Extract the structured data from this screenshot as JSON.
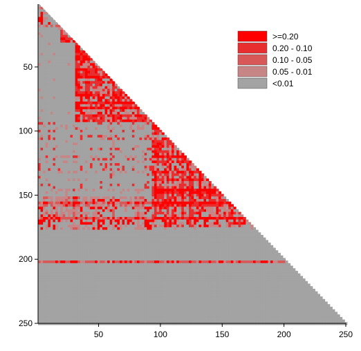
{
  "chart_data": {
    "type": "heatmap",
    "title": "",
    "xlabel": "",
    "ylabel": "",
    "matrix_size": 250,
    "xlim": [
      1,
      250
    ],
    "ylim": [
      1,
      250
    ],
    "y_inverted": true,
    "lower_triangle_only": true,
    "x_ticks": [
      50,
      100,
      150,
      200,
      250
    ],
    "y_ticks": [
      50,
      100,
      150,
      200,
      250
    ],
    "x_tick_labels": [
      "50",
      "100",
      "150",
      "200",
      "250"
    ],
    "y_tick_labels": [
      "50",
      "100",
      "150",
      "200",
      "250"
    ],
    "legend_position": "top-right",
    "legend": [
      {
        "label": ">=0.20",
        "color": "#ff0000"
      },
      {
        "label": "0.20 - 0.10",
        "color": "#e82e2e"
      },
      {
        "label": "0.10 - 0.05",
        "color": "#d85858"
      },
      {
        "label": "0.05 - 0.01",
        "color": "#c88585"
      },
      {
        "label": "<0.01",
        "color": "#a3a3a3"
      }
    ],
    "high_value_blocks": [
      {
        "from": 1,
        "to": 18,
        "intensity": 0.55
      },
      {
        "from": 18,
        "to": 30,
        "intensity": 0.75
      },
      {
        "from": 30,
        "to": 92,
        "intensity": 0.85
      },
      {
        "from": 92,
        "to": 175,
        "intensity": 0.8
      }
    ],
    "cross_block_regions": [
      {
        "rows": [
          92,
          175
        ],
        "cols": [
          1,
          92
        ],
        "intensity": 0.25
      },
      {
        "rows": [
          150,
          175
        ],
        "cols": [
          1,
          92
        ],
        "intensity": 0.7
      },
      {
        "rows": [
          200,
          202
        ],
        "cols": [
          1,
          200
        ],
        "intensity": 0.5
      }
    ]
  }
}
